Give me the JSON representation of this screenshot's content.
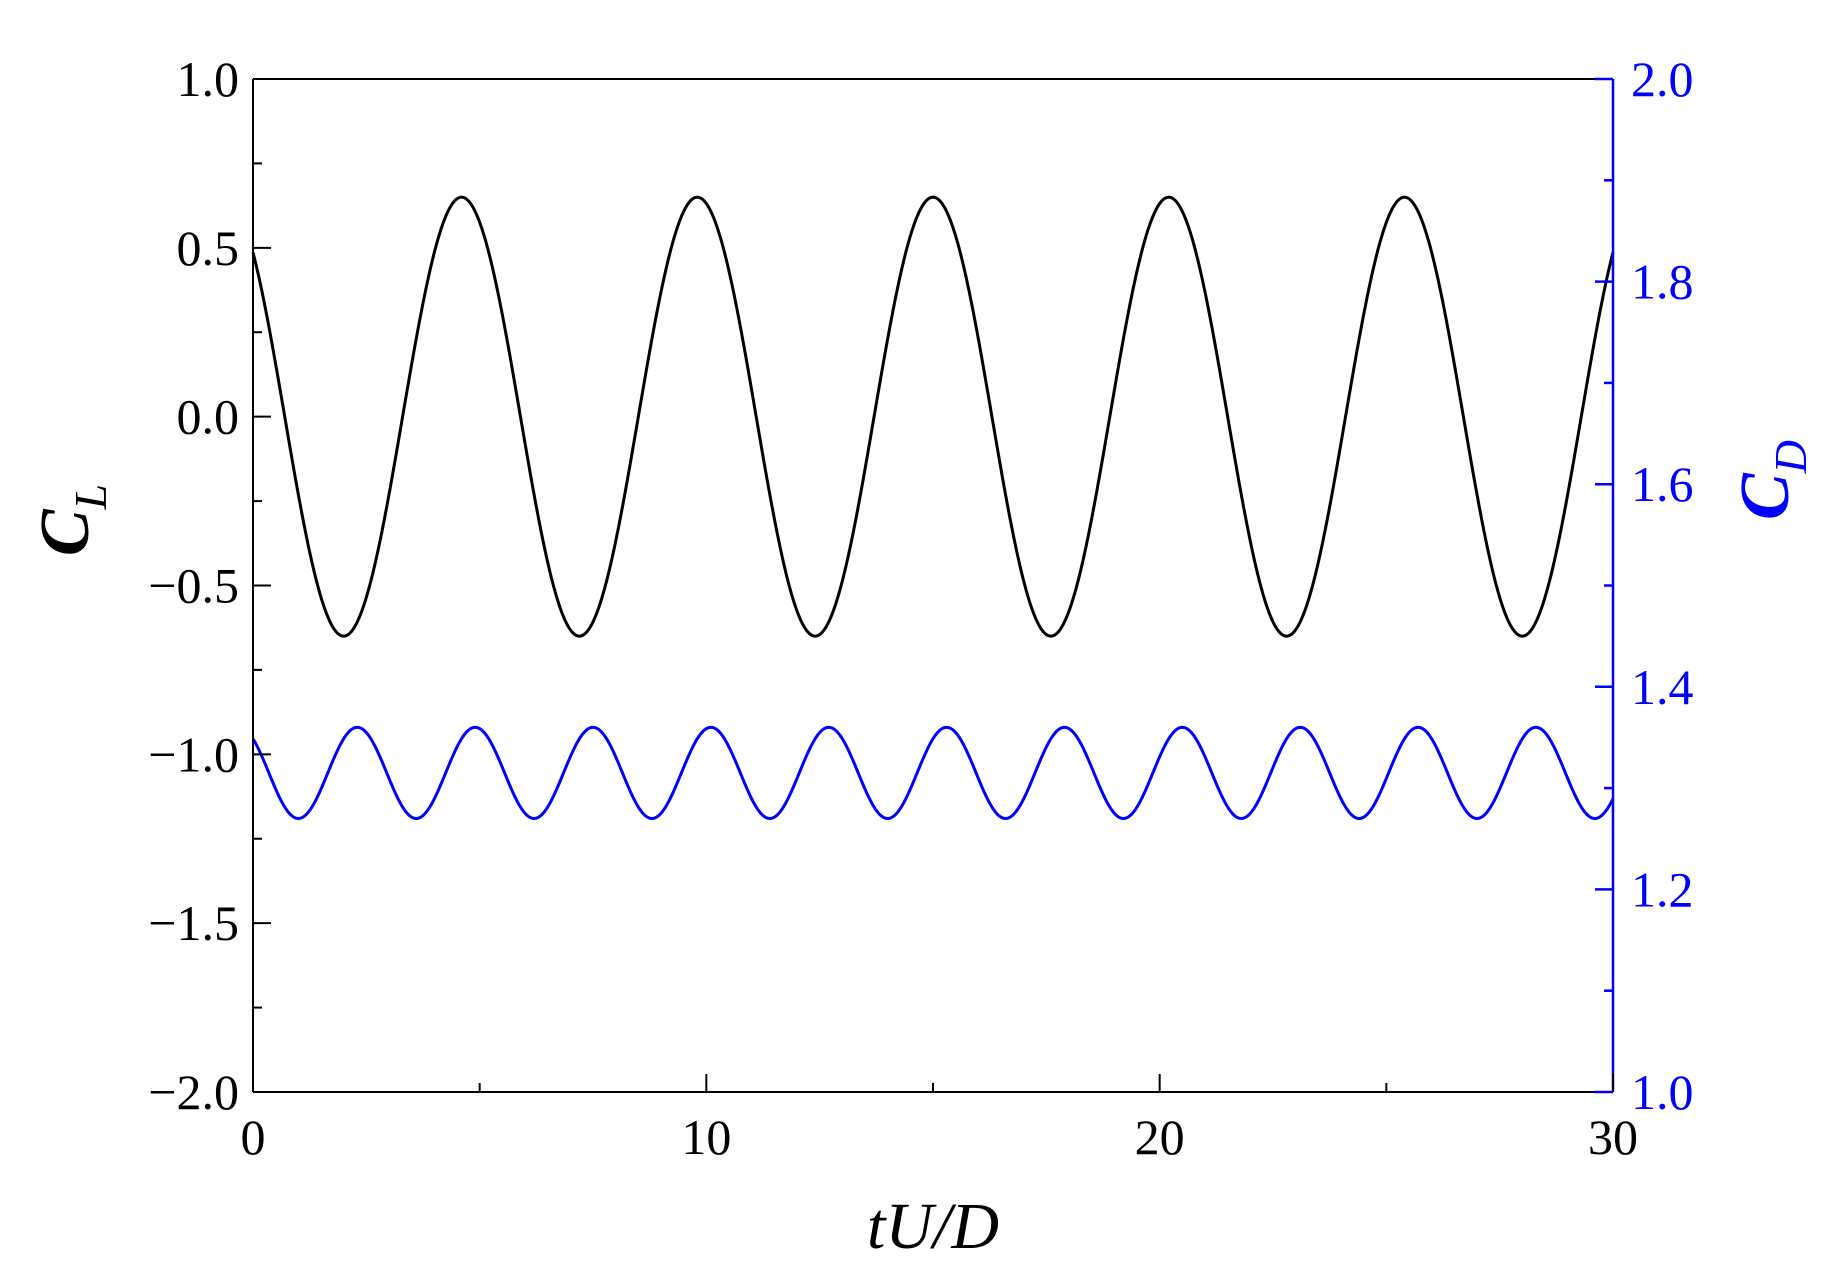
{
  "chart_data": {
    "type": "line",
    "xlabel": {
      "main": "tU/D"
    },
    "ylabel_left": {
      "main": "C",
      "sub": "L"
    },
    "ylabel_right": {
      "main": "C",
      "sub": "D"
    },
    "xlim": [
      0,
      30
    ],
    "ylim_left": [
      -2.0,
      1.0
    ],
    "ylim_right": [
      1.0,
      2.0
    ],
    "x_ticks": [
      0,
      10,
      20,
      30
    ],
    "y_left_ticks": [
      "1.0",
      "0.5",
      "0.0",
      "−0.5",
      "−1.0",
      "−1.5",
      "−2.0"
    ],
    "y_left_tick_values": [
      1.0,
      0.5,
      0.0,
      -0.5,
      -1.0,
      -1.5,
      -2.0
    ],
    "y_right_ticks": [
      "2.0",
      "1.8",
      "1.6",
      "1.4",
      "1.2",
      "1.0"
    ],
    "y_right_tick_values": [
      2.0,
      1.8,
      1.6,
      1.4,
      1.2,
      1.0
    ],
    "grid": false,
    "series": [
      {
        "axis": "left",
        "color": "#000000",
        "model": "sinusoid",
        "amplitude": 0.65,
        "mean": 0.0,
        "period": 5.2,
        "peak_at": 4.6
      },
      {
        "axis": "right",
        "color": "#0000ff",
        "model": "sinusoid",
        "amplitude": 0.045,
        "mean": 1.315,
        "period": 2.6,
        "peak_at": 2.3
      }
    ],
    "colors": {
      "axis_left": "#000000",
      "axis_right": "#0000ff"
    }
  }
}
